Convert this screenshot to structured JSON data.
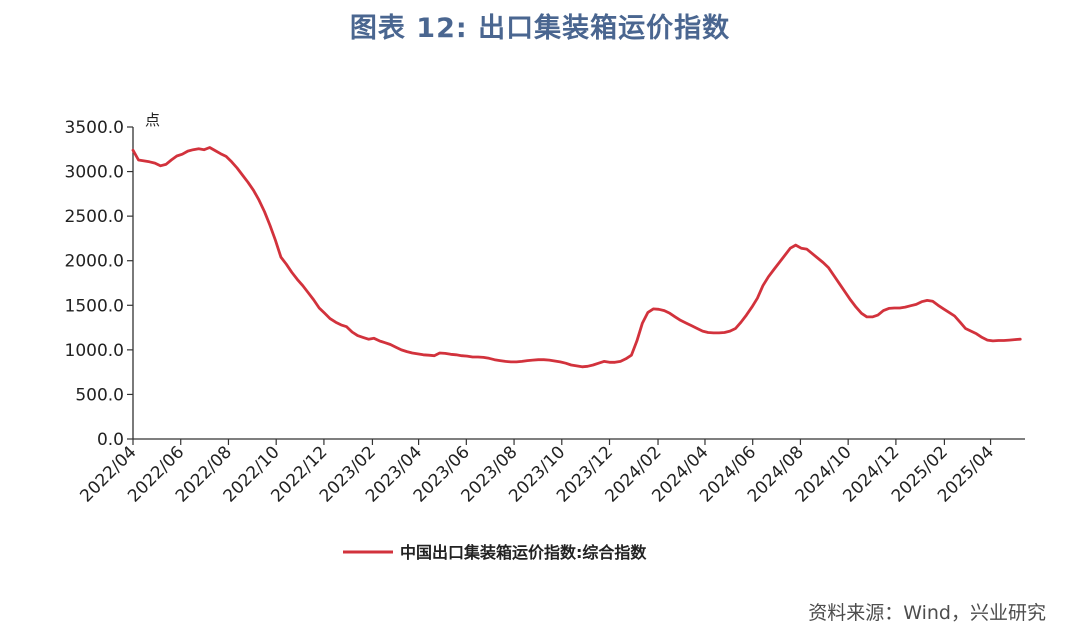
{
  "chart_data": {
    "type": "line",
    "title": "图表 12: 出口集装箱运价指数",
    "ylabel": "点",
    "ylim": [
      0,
      3500
    ],
    "yticks": [
      "0.0",
      "500.0",
      "1000.0",
      "1500.0",
      "2000.0",
      "2500.0",
      "3000.0",
      "3500.0"
    ],
    "xticks": [
      "2022/04",
      "2022/06",
      "2022/08",
      "2022/10",
      "2022/12",
      "2023/02",
      "2023/04",
      "2023/06",
      "2023/08",
      "2023/10",
      "2023/12",
      "2024/02",
      "2024/04",
      "2024/06",
      "2024/08",
      "2024/10",
      "2024/12",
      "2025/02",
      "2025/04"
    ],
    "x_range": [
      "2022-04-01",
      "2025-05-15"
    ],
    "grid": false,
    "legend_position": "bottom",
    "series": [
      {
        "name": "中国出口集装箱运价指数:综合指数",
        "color": "#d2323c",
        "points": [
          [
            "2022-04-01",
            3240
          ],
          [
            "2022-04-08",
            3130
          ],
          [
            "2022-04-15",
            3120
          ],
          [
            "2022-04-22",
            3110
          ],
          [
            "2022-04-29",
            3095
          ],
          [
            "2022-05-06",
            3065
          ],
          [
            "2022-05-13",
            3080
          ],
          [
            "2022-05-20",
            3130
          ],
          [
            "2022-05-27",
            3175
          ],
          [
            "2022-06-03",
            3195
          ],
          [
            "2022-06-10",
            3230
          ],
          [
            "2022-06-17",
            3245
          ],
          [
            "2022-06-24",
            3255
          ],
          [
            "2022-07-01",
            3245
          ],
          [
            "2022-07-08",
            3270
          ],
          [
            "2022-07-15",
            3235
          ],
          [
            "2022-07-22",
            3200
          ],
          [
            "2022-07-29",
            3170
          ],
          [
            "2022-08-05",
            3110
          ],
          [
            "2022-08-12",
            3040
          ],
          [
            "2022-08-19",
            2960
          ],
          [
            "2022-08-26",
            2880
          ],
          [
            "2022-09-02",
            2790
          ],
          [
            "2022-09-09",
            2680
          ],
          [
            "2022-09-16",
            2550
          ],
          [
            "2022-09-23",
            2400
          ],
          [
            "2022-09-30",
            2230
          ],
          [
            "2022-10-07",
            2040
          ],
          [
            "2022-10-14",
            1960
          ],
          [
            "2022-10-21",
            1870
          ],
          [
            "2022-10-28",
            1790
          ],
          [
            "2022-11-04",
            1720
          ],
          [
            "2022-11-11",
            1640
          ],
          [
            "2022-11-18",
            1560
          ],
          [
            "2022-11-25",
            1470
          ],
          [
            "2022-12-02",
            1410
          ],
          [
            "2022-12-09",
            1350
          ],
          [
            "2022-12-16",
            1310
          ],
          [
            "2022-12-23",
            1280
          ],
          [
            "2022-12-30",
            1260
          ],
          [
            "2023-01-06",
            1200
          ],
          [
            "2023-01-13",
            1160
          ],
          [
            "2023-01-20",
            1140
          ],
          [
            "2023-01-27",
            1120
          ],
          [
            "2023-02-03",
            1130
          ],
          [
            "2023-02-10",
            1100
          ],
          [
            "2023-02-17",
            1080
          ],
          [
            "2023-02-24",
            1060
          ],
          [
            "2023-03-03",
            1030
          ],
          [
            "2023-03-10",
            1000
          ],
          [
            "2023-03-17",
            980
          ],
          [
            "2023-03-24",
            965
          ],
          [
            "2023-03-31",
            955
          ],
          [
            "2023-04-07",
            945
          ],
          [
            "2023-04-14",
            940
          ],
          [
            "2023-04-21",
            935
          ],
          [
            "2023-04-28",
            965
          ],
          [
            "2023-05-05",
            960
          ],
          [
            "2023-05-12",
            950
          ],
          [
            "2023-05-19",
            945
          ],
          [
            "2023-05-26",
            935
          ],
          [
            "2023-06-02",
            930
          ],
          [
            "2023-06-09",
            920
          ],
          [
            "2023-06-16",
            920
          ],
          [
            "2023-06-23",
            915
          ],
          [
            "2023-06-30",
            905
          ],
          [
            "2023-07-07",
            890
          ],
          [
            "2023-07-14",
            880
          ],
          [
            "2023-07-21",
            870
          ],
          [
            "2023-07-28",
            865
          ],
          [
            "2023-08-04",
            865
          ],
          [
            "2023-08-11",
            870
          ],
          [
            "2023-08-18",
            880
          ],
          [
            "2023-08-25",
            885
          ],
          [
            "2023-09-01",
            890
          ],
          [
            "2023-09-08",
            890
          ],
          [
            "2023-09-15",
            885
          ],
          [
            "2023-09-22",
            875
          ],
          [
            "2023-09-29",
            865
          ],
          [
            "2023-10-06",
            850
          ],
          [
            "2023-10-13",
            830
          ],
          [
            "2023-10-20",
            820
          ],
          [
            "2023-10-27",
            810
          ],
          [
            "2023-11-03",
            815
          ],
          [
            "2023-11-10",
            830
          ],
          [
            "2023-11-17",
            850
          ],
          [
            "2023-11-24",
            870
          ],
          [
            "2023-12-01",
            860
          ],
          [
            "2023-12-08",
            860
          ],
          [
            "2023-12-15",
            870
          ],
          [
            "2023-12-22",
            900
          ],
          [
            "2023-12-29",
            940
          ],
          [
            "2024-01-05",
            1100
          ],
          [
            "2024-01-12",
            1300
          ],
          [
            "2024-01-19",
            1420
          ],
          [
            "2024-01-26",
            1460
          ],
          [
            "2024-02-02",
            1455
          ],
          [
            "2024-02-09",
            1440
          ],
          [
            "2024-02-16",
            1410
          ],
          [
            "2024-02-23",
            1370
          ],
          [
            "2024-03-01",
            1330
          ],
          [
            "2024-03-08",
            1300
          ],
          [
            "2024-03-15",
            1270
          ],
          [
            "2024-03-22",
            1240
          ],
          [
            "2024-03-29",
            1210
          ],
          [
            "2024-04-05",
            1195
          ],
          [
            "2024-04-12",
            1190
          ],
          [
            "2024-04-19",
            1190
          ],
          [
            "2024-04-26",
            1195
          ],
          [
            "2024-05-03",
            1210
          ],
          [
            "2024-05-10",
            1240
          ],
          [
            "2024-05-17",
            1310
          ],
          [
            "2024-05-24",
            1390
          ],
          [
            "2024-05-31",
            1480
          ],
          [
            "2024-06-07",
            1580
          ],
          [
            "2024-06-14",
            1720
          ],
          [
            "2024-06-21",
            1820
          ],
          [
            "2024-06-28",
            1900
          ],
          [
            "2024-07-05",
            1980
          ],
          [
            "2024-07-12",
            2060
          ],
          [
            "2024-07-19",
            2140
          ],
          [
            "2024-07-26",
            2175
          ],
          [
            "2024-08-02",
            2140
          ],
          [
            "2024-08-09",
            2130
          ],
          [
            "2024-08-16",
            2080
          ],
          [
            "2024-08-23",
            2030
          ],
          [
            "2024-08-30",
            1980
          ],
          [
            "2024-09-06",
            1920
          ],
          [
            "2024-09-13",
            1830
          ],
          [
            "2024-09-20",
            1740
          ],
          [
            "2024-09-27",
            1650
          ],
          [
            "2024-10-04",
            1560
          ],
          [
            "2024-10-11",
            1480
          ],
          [
            "2024-10-18",
            1410
          ],
          [
            "2024-10-25",
            1370
          ],
          [
            "2024-11-01",
            1370
          ],
          [
            "2024-11-08",
            1390
          ],
          [
            "2024-11-15",
            1440
          ],
          [
            "2024-11-22",
            1465
          ],
          [
            "2024-11-29",
            1470
          ],
          [
            "2024-12-06",
            1470
          ],
          [
            "2024-12-13",
            1480
          ],
          [
            "2024-12-20",
            1495
          ],
          [
            "2024-12-27",
            1510
          ],
          [
            "2025-01-03",
            1540
          ],
          [
            "2025-01-10",
            1555
          ],
          [
            "2025-01-17",
            1545
          ],
          [
            "2025-01-24",
            1500
          ],
          [
            "2025-01-31",
            1460
          ],
          [
            "2025-02-07",
            1420
          ],
          [
            "2025-02-14",
            1380
          ],
          [
            "2025-02-21",
            1310
          ],
          [
            "2025-02-28",
            1240
          ],
          [
            "2025-03-07",
            1210
          ],
          [
            "2025-03-14",
            1180
          ],
          [
            "2025-03-21",
            1140
          ],
          [
            "2025-03-28",
            1110
          ],
          [
            "2025-04-04",
            1100
          ],
          [
            "2025-04-11",
            1105
          ],
          [
            "2025-04-18",
            1105
          ],
          [
            "2025-04-25",
            1110
          ],
          [
            "2025-05-02",
            1115
          ],
          [
            "2025-05-09",
            1120
          ]
        ]
      }
    ]
  },
  "source": "资料来源：Wind，兴业研究"
}
